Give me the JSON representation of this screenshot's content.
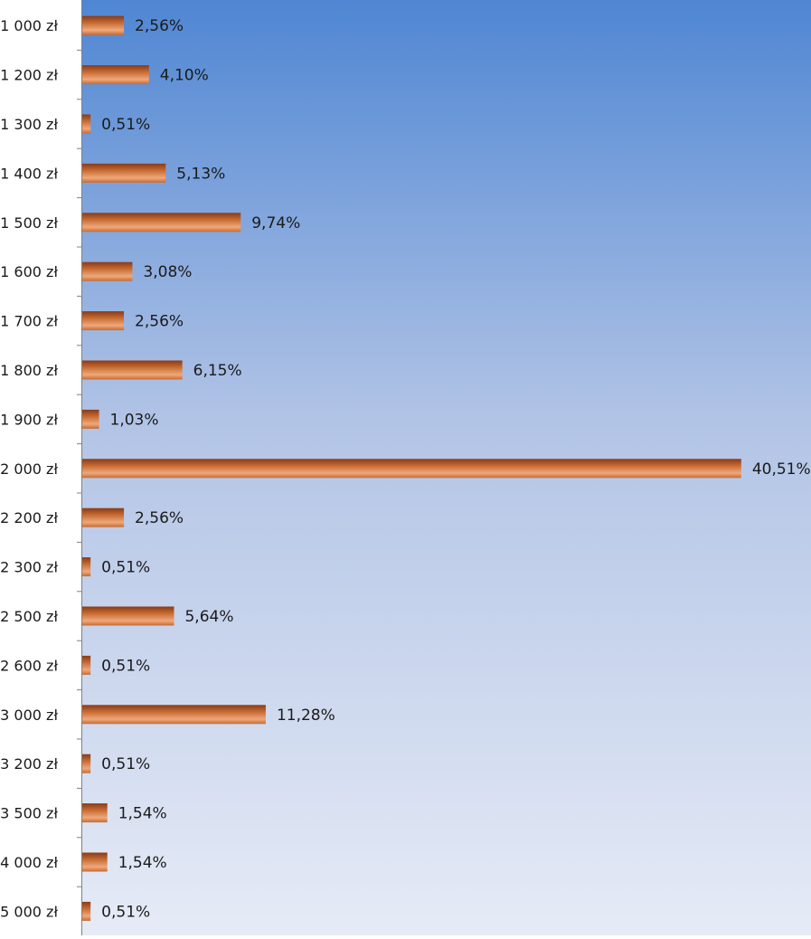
{
  "chart_data": {
    "type": "bar",
    "orientation": "horizontal",
    "categories": [
      "1 000 zł",
      "1 200 zł",
      "1 300 zł",
      "1 400 zł",
      "1 500 zł",
      "1 600 zł",
      "1 700 zł",
      "1 800 zł",
      "1 900 zł",
      "2 000 zł",
      "2 200 zł",
      "2 300 zł",
      "2 500 zł",
      "2 600 zł",
      "3 000 zł",
      "3 200 zł",
      "3 500 zł",
      "4 000 zł",
      "5 000 zł"
    ],
    "values": [
      2.56,
      4.1,
      0.51,
      5.13,
      9.74,
      3.08,
      2.56,
      6.15,
      1.03,
      40.51,
      2.56,
      0.51,
      5.64,
      0.51,
      11.28,
      0.51,
      1.54,
      1.54,
      0.51
    ],
    "data_labels": [
      "2,56%",
      "4,10%",
      "0,51%",
      "5,13%",
      "9,74%",
      "3,08%",
      "2,56%",
      "6,15%",
      "1,03%",
      "40,51%",
      "2,56%",
      "0,51%",
      "5,64%",
      "0,51%",
      "11,28%",
      "0,51%",
      "1,54%",
      "1,54%",
      "0,51%"
    ],
    "xlim": [
      0,
      45.3
    ],
    "grid": false,
    "legend": "none",
    "colors": {
      "background_top": "#4f86d3",
      "background_middle": "#b2c4e6",
      "background_bottom": "#e6ebf6",
      "bar_light": "#f0a87a",
      "bar_mid": "#c56a32",
      "bar_dark": "#8a3a16",
      "axis": "#808080",
      "text": "#1a1a1a"
    }
  }
}
